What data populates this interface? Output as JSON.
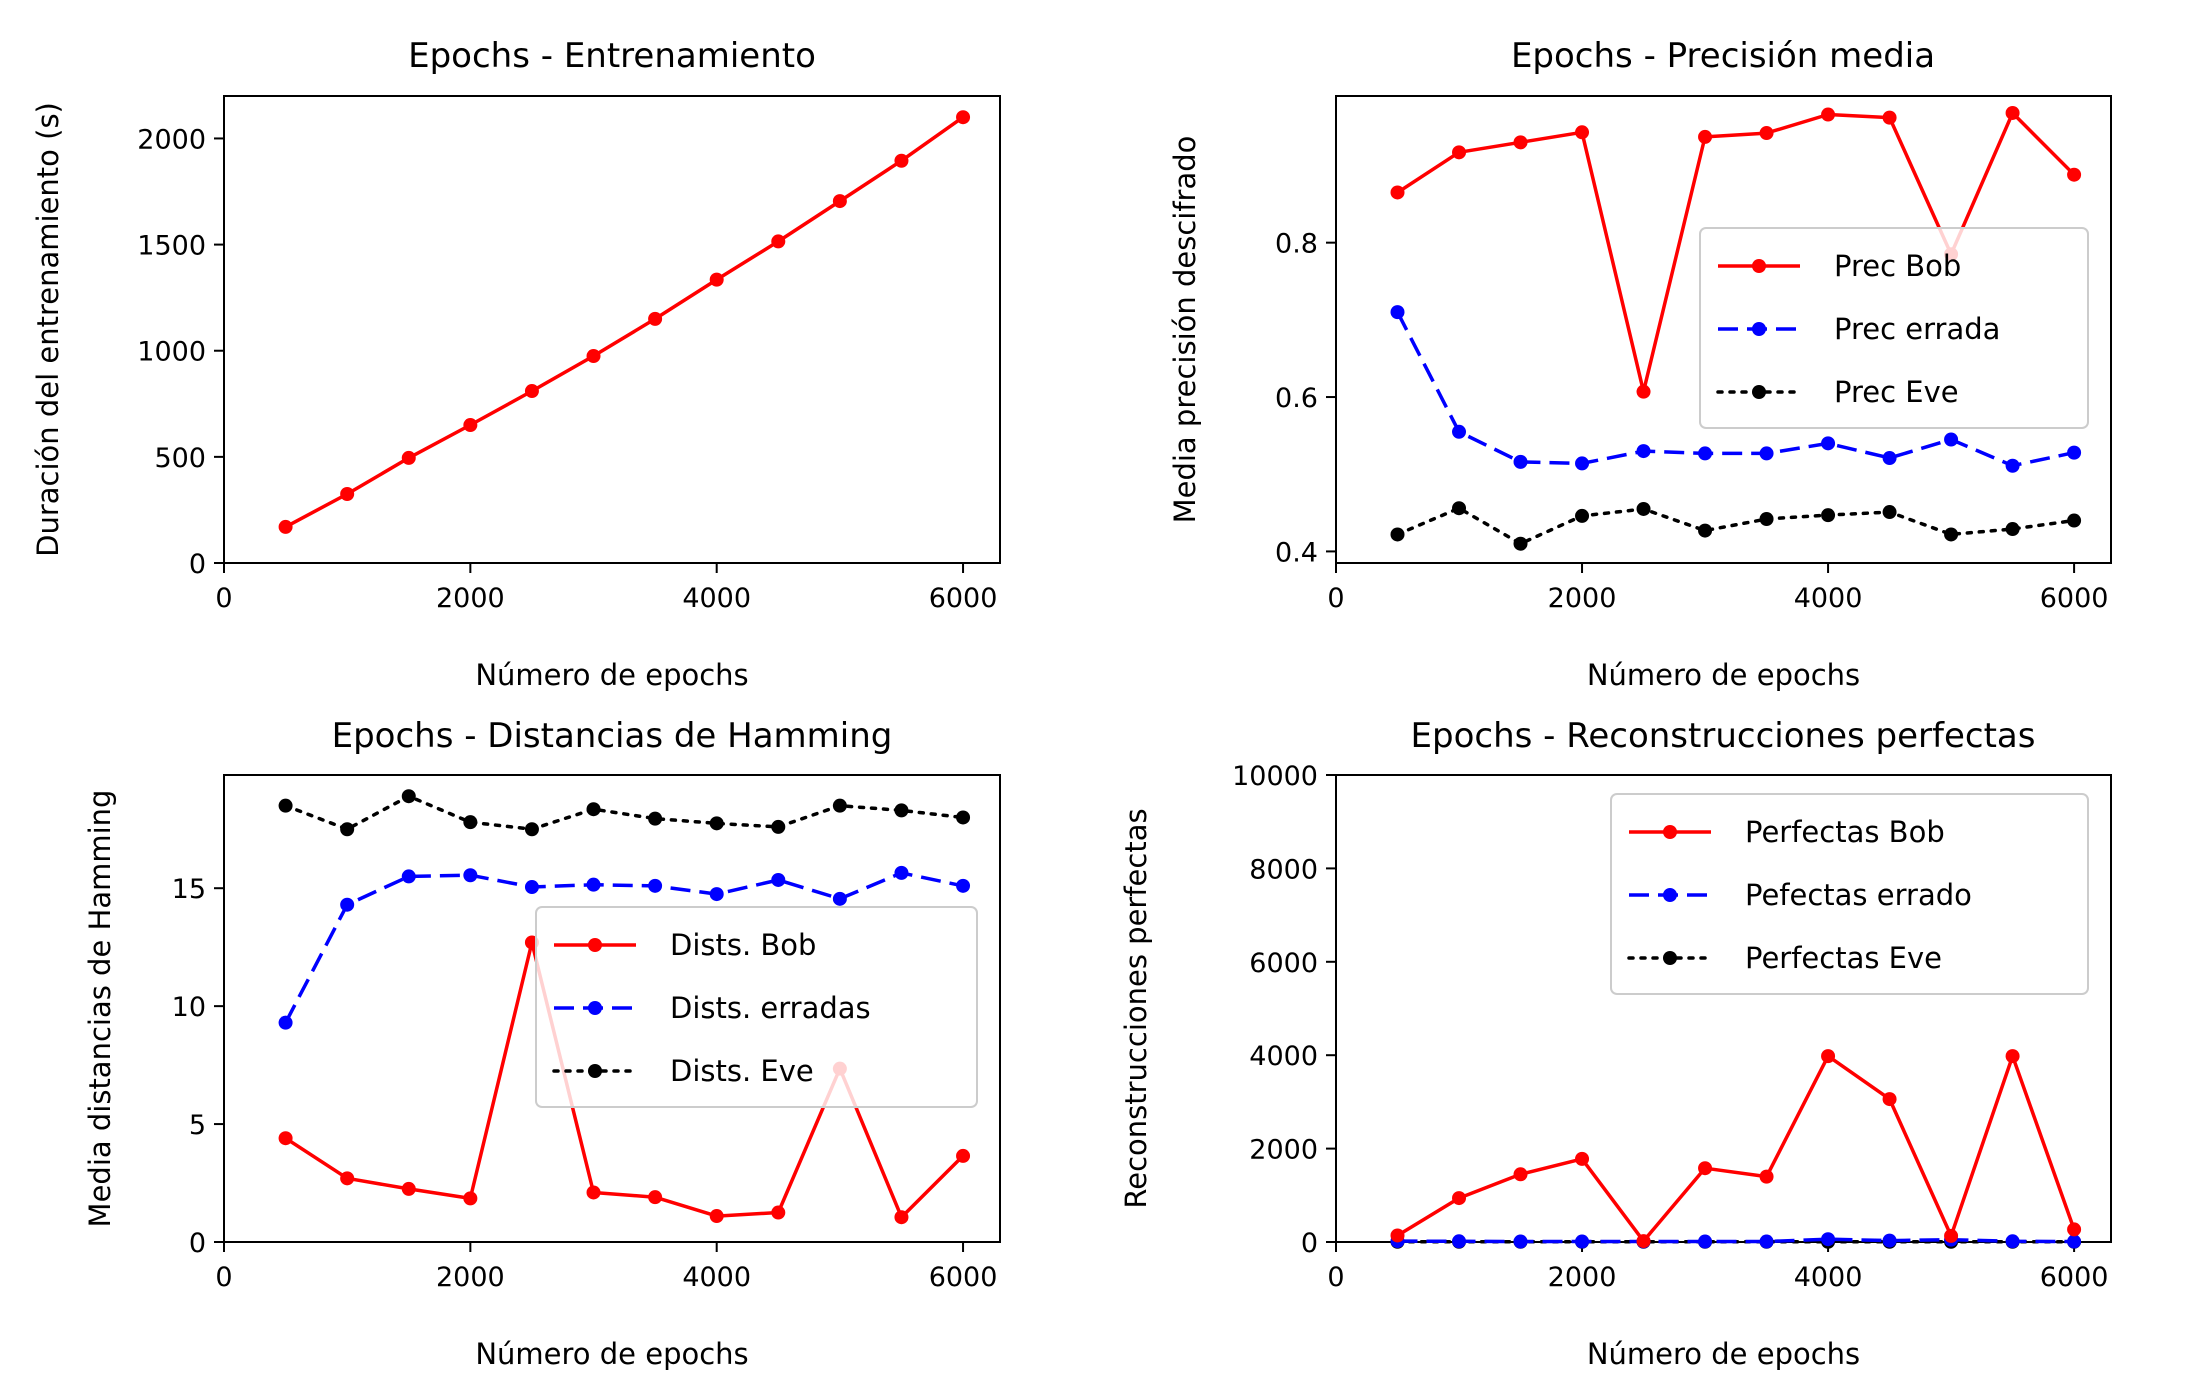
{
  "colors": {
    "red": "#ff0000",
    "blue": "#0000ff",
    "black": "#000000"
  },
  "chart_data": [
    {
      "type": "line",
      "title": "Epochs - Entrenamiento",
      "xlabel": "Número de epochs",
      "ylabel": "Duración del entrenamiento (s)",
      "xlim": [
        0,
        6300
      ],
      "ylim": [
        0,
        2200
      ],
      "xticks": [
        "0",
        "2000",
        "4000",
        "6000"
      ],
      "yticks": [
        "0",
        "500",
        "1000",
        "1500",
        "2000"
      ],
      "legend": null,
      "x": [
        500,
        1000,
        1500,
        2000,
        2500,
        3000,
        3500,
        4000,
        4500,
        5000,
        5500,
        6000
      ],
      "series": [
        {
          "values": [
            170,
            325,
            495,
            650,
            810,
            975,
            1150,
            1335,
            1515,
            1705,
            1895,
            2100
          ],
          "color": "red",
          "style": "solid"
        }
      ]
    },
    {
      "type": "line",
      "title": "Epochs - Precisión media",
      "xlabel": "Número de epochs",
      "ylabel": "Media precisión descifrado",
      "xlim": [
        0,
        6300
      ],
      "ylim": [
        0.385,
        0.99
      ],
      "xticks": [
        "0",
        "2000",
        "4000",
        "6000"
      ],
      "yticks": [
        "0.4",
        "0.6",
        "0.8"
      ],
      "legend": "right",
      "x": [
        500,
        1000,
        1500,
        2000,
        2500,
        3000,
        3500,
        4000,
        4500,
        5000,
        5500,
        6000
      ],
      "series": [
        {
          "name": "Prec Bob",
          "values": [
            0.865,
            0.917,
            0.93,
            0.943,
            0.607,
            0.937,
            0.942,
            0.966,
            0.962,
            0.785,
            0.968,
            0.888
          ],
          "color": "red",
          "style": "solid"
        },
        {
          "name": "Prec errada",
          "values": [
            0.71,
            0.555,
            0.516,
            0.514,
            0.53,
            0.527,
            0.527,
            0.54,
            0.521,
            0.545,
            0.511,
            0.528
          ],
          "color": "blue",
          "style": "dashed"
        },
        {
          "name": "Prec Eve",
          "values": [
            0.422,
            0.456,
            0.41,
            0.446,
            0.455,
            0.427,
            0.442,
            0.447,
            0.451,
            0.422,
            0.429,
            0.44
          ],
          "color": "black",
          "style": "dotted"
        }
      ]
    },
    {
      "type": "line",
      "title": "Epochs - Distancias de Hamming",
      "xlabel": "Número de epochs",
      "ylabel": "Media distancias de Hamming",
      "xlim": [
        0,
        6300
      ],
      "ylim": [
        0,
        19.8
      ],
      "xticks": [
        "0",
        "2000",
        "4000",
        "6000"
      ],
      "yticks": [
        "0",
        "5",
        "10",
        "15"
      ],
      "legend": "center-right",
      "x": [
        500,
        1000,
        1500,
        2000,
        2500,
        3000,
        3500,
        4000,
        4500,
        5000,
        5500,
        6000
      ],
      "series": [
        {
          "name": "Dists. Bob",
          "values": [
            4.4,
            2.7,
            2.25,
            1.85,
            12.7,
            2.1,
            1.9,
            1.1,
            1.25,
            7.35,
            1.05,
            3.65
          ],
          "color": "red",
          "style": "solid"
        },
        {
          "name": "Dists. erradas",
          "values": [
            9.3,
            14.3,
            15.5,
            15.55,
            15.05,
            15.15,
            15.1,
            14.75,
            15.35,
            14.55,
            15.65,
            15.1
          ],
          "color": "blue",
          "style": "dashed"
        },
        {
          "name": "Dists. Eve",
          "values": [
            18.5,
            17.5,
            18.9,
            17.8,
            17.5,
            18.35,
            17.95,
            17.75,
            17.6,
            18.5,
            18.3,
            18.0
          ],
          "color": "black",
          "style": "dotted"
        }
      ]
    },
    {
      "type": "line",
      "title": "Epochs - Reconstrucciones perfectas",
      "xlabel": "Número de epochs",
      "ylabel": "Reconstrucciones perfectas",
      "xlim": [
        0,
        6300
      ],
      "ylim": [
        0,
        10000
      ],
      "xticks": [
        "0",
        "2000",
        "4000",
        "6000"
      ],
      "yticks": [
        "0",
        "2000",
        "4000",
        "6000",
        "8000",
        "10000"
      ],
      "legend": "top-right",
      "x": [
        500,
        1000,
        1500,
        2000,
        2500,
        3000,
        3500,
        4000,
        4500,
        5000,
        5500,
        6000
      ],
      "series": [
        {
          "name": "Perfectas Bob",
          "values": [
            140,
            940,
            1450,
            1780,
            20,
            1580,
            1400,
            3980,
            3060,
            130,
            3980,
            270
          ],
          "color": "red",
          "style": "solid"
        },
        {
          "name": "Pefectas errado",
          "values": [
            20,
            15,
            10,
            10,
            10,
            10,
            10,
            60,
            30,
            50,
            15,
            10
          ],
          "color": "blue",
          "style": "dashed"
        },
        {
          "name": "Perfectas Eve",
          "values": [
            5,
            5,
            5,
            5,
            5,
            5,
            5,
            5,
            5,
            5,
            5,
            5
          ],
          "color": "black",
          "style": "dotted"
        }
      ]
    }
  ]
}
